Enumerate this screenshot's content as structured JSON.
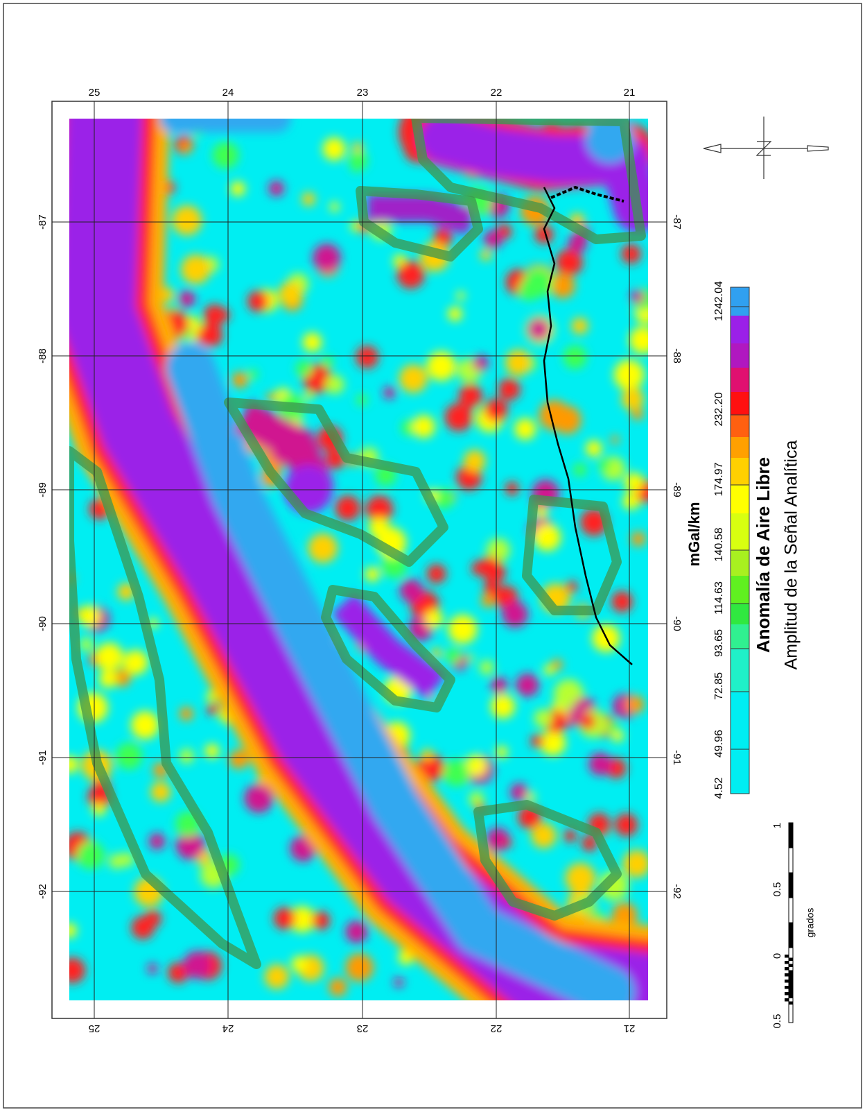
{
  "map": {
    "latitude_labels_top": [
      "25",
      "24",
      "23",
      "22",
      "21"
    ],
    "longitude_labels_left": [
      "-87",
      "-88",
      "-89",
      "-90",
      "-91",
      "-92"
    ],
    "latitude_labels_bottom": [
      "25",
      "24",
      "23",
      "22",
      "21"
    ],
    "longitude_labels_right": [
      "-87",
      "-88",
      "-89",
      "-90",
      "-91",
      "-92"
    ]
  },
  "legend": {
    "units": "mGal/km",
    "title": "Anomalía de Aire Libre",
    "subtitle": "Amplitud de la Señal Analítica",
    "scale_labels": [
      "4.52",
      "49.96",
      "72.85",
      "93.65",
      "114.63",
      "140.58",
      "174.97",
      "232.20",
      "1242.04"
    ]
  },
  "scale_bar": {
    "labels": [
      "0.5",
      "0",
      "0.5",
      "1"
    ],
    "unit": "grados"
  }
}
